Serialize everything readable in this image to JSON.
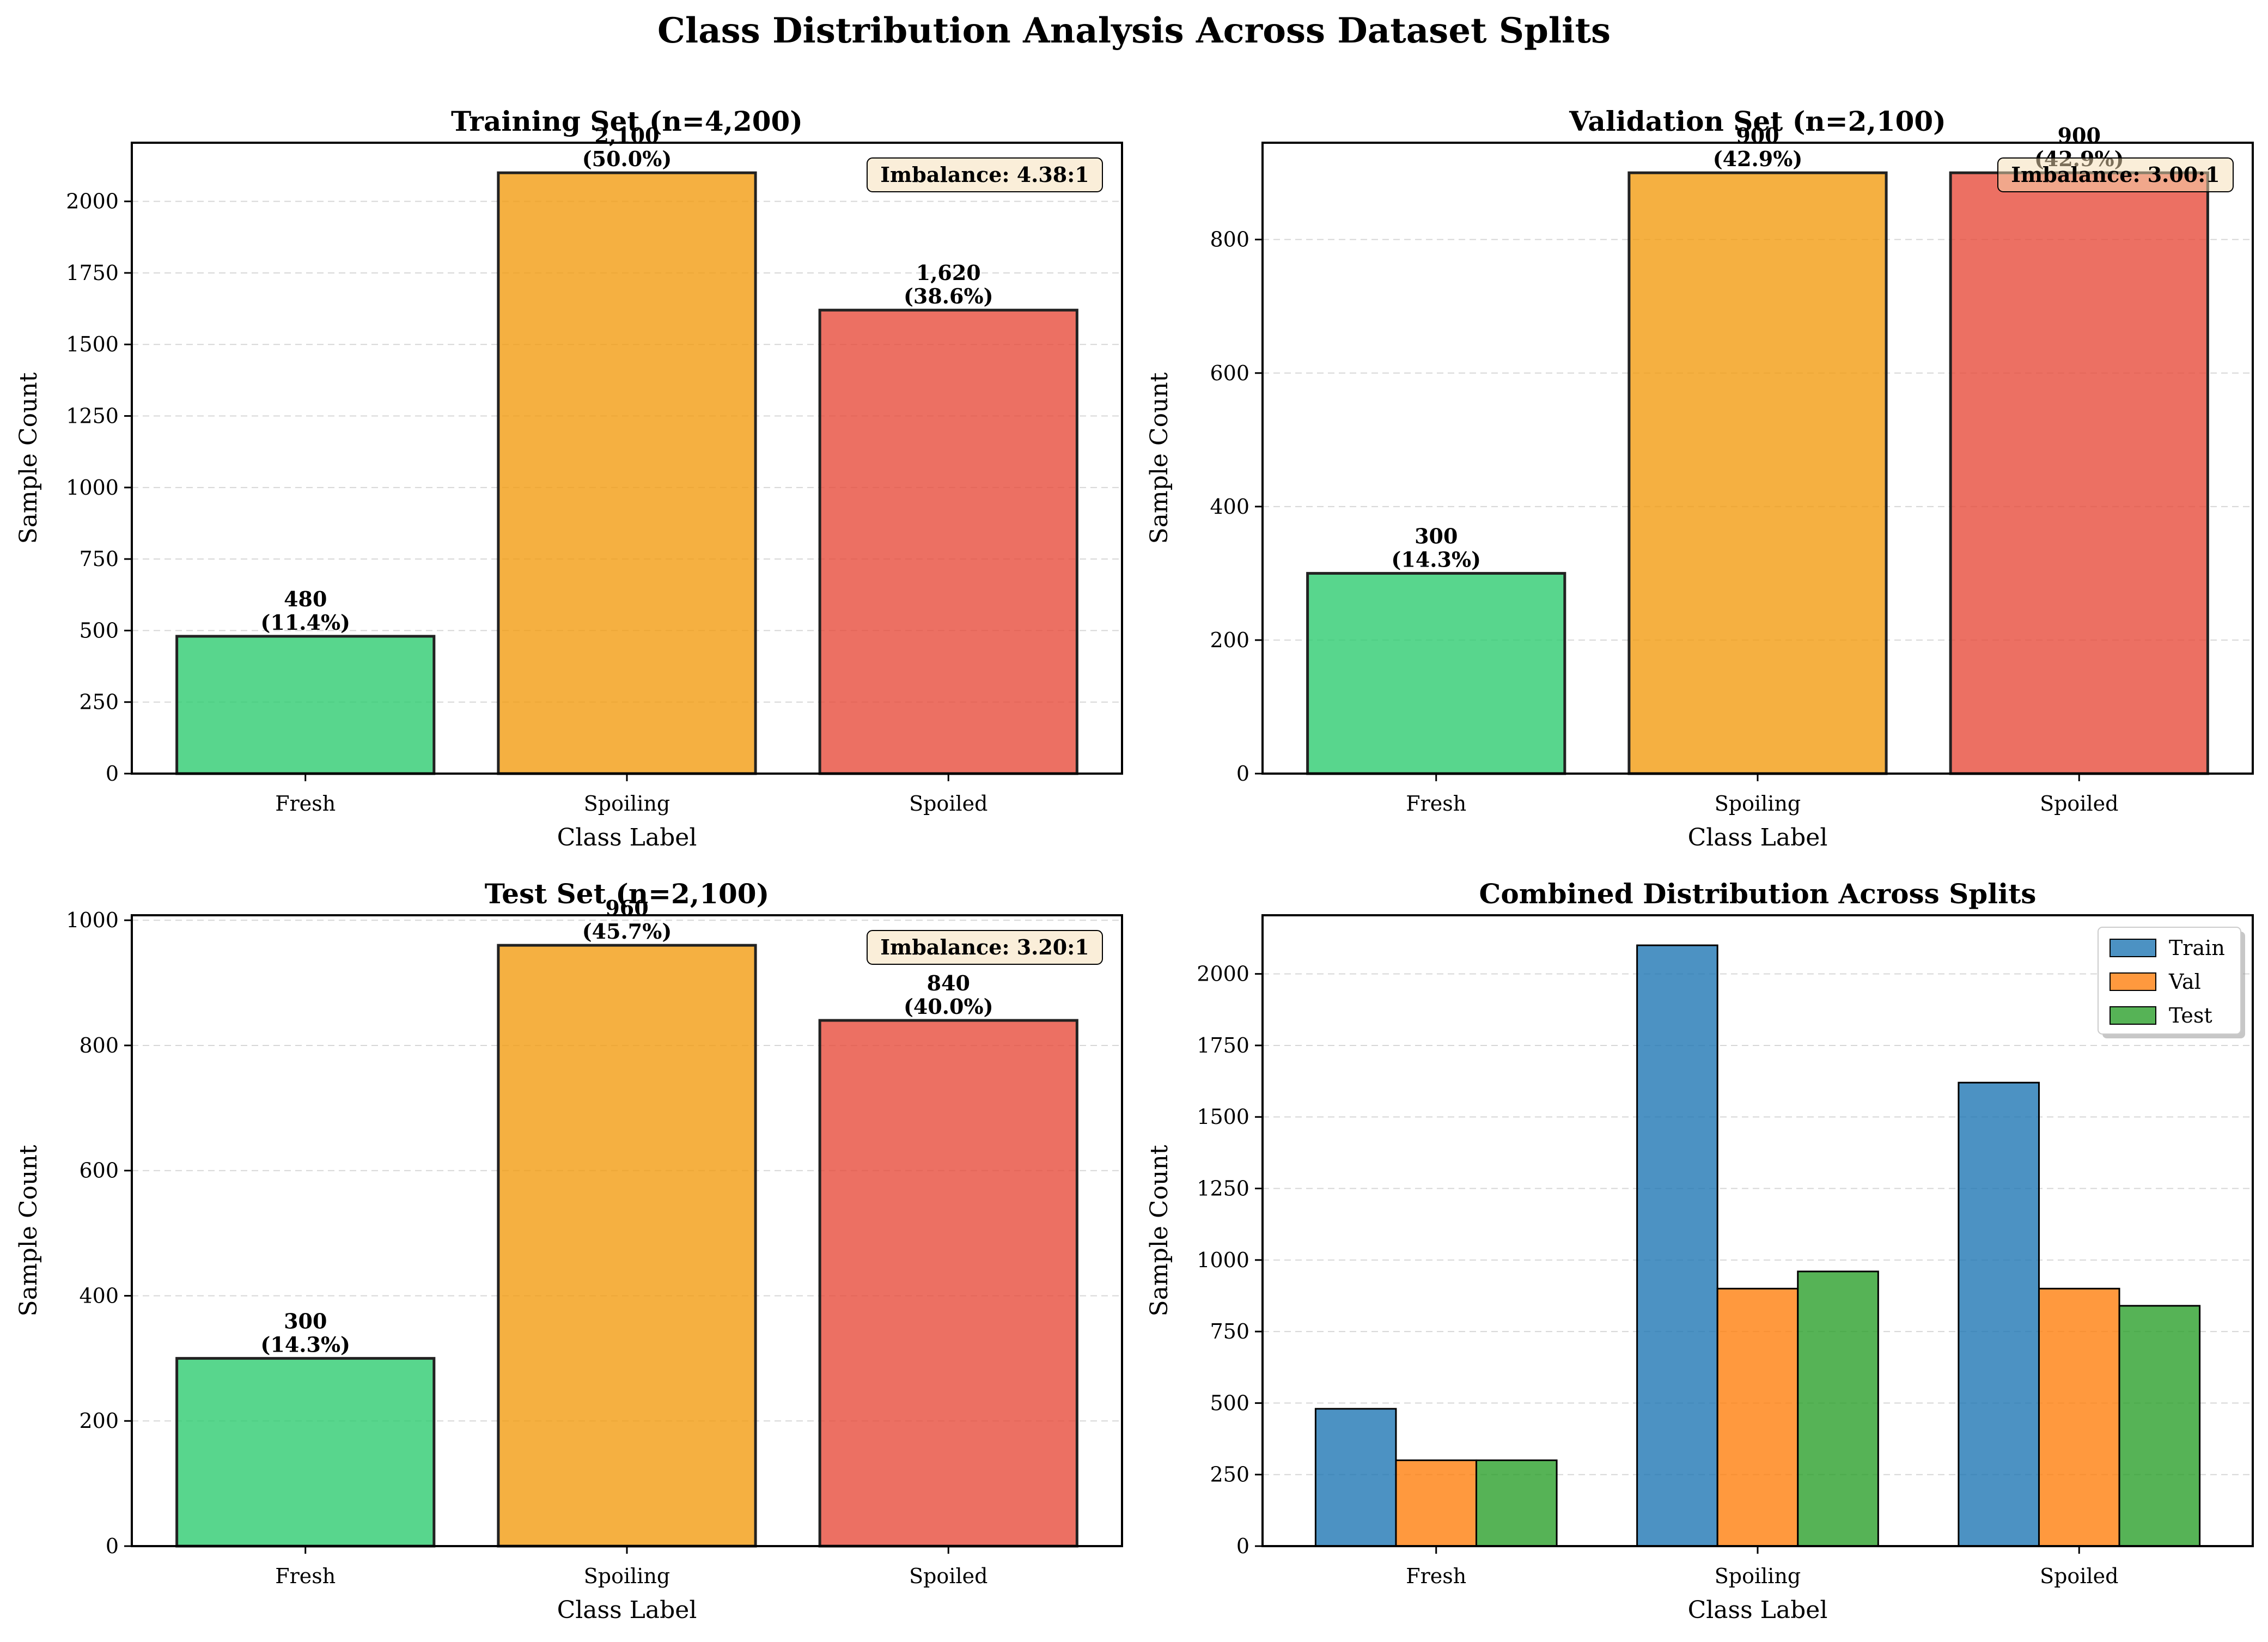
{
  "figure": {
    "title": "Class Distribution Analysis Across Dataset Splits"
  },
  "chart_data": [
    {
      "type": "bar",
      "title": "Training Set (n=4,200)",
      "xlabel": "Class Label",
      "ylabel": "Sample Count",
      "categories": [
        "Fresh",
        "Spoiling",
        "Spoiled"
      ],
      "values": [
        480,
        2100,
        1620
      ],
      "value_labels": [
        "480",
        "2,100",
        "1,620"
      ],
      "percent_labels": [
        "(11.4%)",
        "(50.0%)",
        "(38.6%)"
      ],
      "colors": [
        "#2ecc71",
        "#f39c12",
        "#e74c3c"
      ],
      "ylim": [
        0,
        2205
      ],
      "yticks": [
        0,
        250,
        500,
        750,
        1000,
        1250,
        1500,
        1750,
        2000
      ],
      "grid": true,
      "annotation": "Imbalance: 4.38:1"
    },
    {
      "type": "bar",
      "title": "Validation Set (n=2,100)",
      "xlabel": "Class Label",
      "ylabel": "Sample Count",
      "categories": [
        "Fresh",
        "Spoiling",
        "Spoiled"
      ],
      "values": [
        300,
        900,
        900
      ],
      "value_labels": [
        "300",
        "900",
        "900"
      ],
      "percent_labels": [
        "(14.3%)",
        "(42.9%)",
        "(42.9%)"
      ],
      "colors": [
        "#2ecc71",
        "#f39c12",
        "#e74c3c"
      ],
      "ylim": [
        0,
        945
      ],
      "yticks": [
        0,
        200,
        400,
        600,
        800
      ],
      "grid": true,
      "annotation": "Imbalance: 3.00:1"
    },
    {
      "type": "bar",
      "title": "Test Set (n=2,100)",
      "xlabel": "Class Label",
      "ylabel": "Sample Count",
      "categories": [
        "Fresh",
        "Spoiling",
        "Spoiled"
      ],
      "values": [
        300,
        960,
        840
      ],
      "value_labels": [
        "300",
        "960",
        "840"
      ],
      "percent_labels": [
        "(14.3%)",
        "(45.7%)",
        "(40.0%)"
      ],
      "colors": [
        "#2ecc71",
        "#f39c12",
        "#e74c3c"
      ],
      "ylim": [
        0,
        1008
      ],
      "yticks": [
        0,
        200,
        400,
        600,
        800,
        1000
      ],
      "grid": true,
      "annotation": "Imbalance: 3.20:1"
    },
    {
      "type": "bar",
      "title": "Combined Distribution Across Splits",
      "xlabel": "Class Label",
      "ylabel": "Sample Count",
      "categories": [
        "Fresh",
        "Spoiling",
        "Spoiled"
      ],
      "series": [
        {
          "name": "Train",
          "values": [
            480,
            2100,
            1620
          ],
          "color": "#1f77b4"
        },
        {
          "name": "Val",
          "values": [
            300,
            900,
            900
          ],
          "color": "#ff7f0e"
        },
        {
          "name": "Test",
          "values": [
            300,
            960,
            840
          ],
          "color": "#2ca02c"
        }
      ],
      "ylim": [
        0,
        2205
      ],
      "yticks": [
        0,
        250,
        500,
        750,
        1000,
        1250,
        1500,
        1750,
        2000
      ],
      "grid": true,
      "legend": "top-right"
    }
  ]
}
